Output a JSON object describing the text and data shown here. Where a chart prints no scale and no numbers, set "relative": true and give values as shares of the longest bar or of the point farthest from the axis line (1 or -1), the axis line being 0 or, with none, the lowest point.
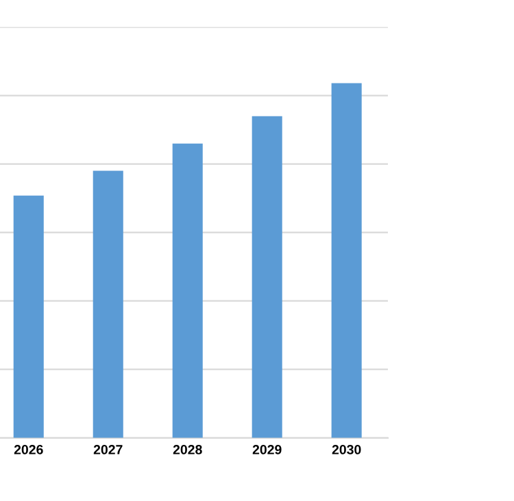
{
  "chart_data": {
    "type": "bar",
    "relative": true,
    "categories": [
      "2026",
      "2027",
      "2028",
      "2029",
      "2030"
    ],
    "values": [
      0.683,
      0.753,
      0.83,
      0.907,
      1
    ],
    "color": "#5b9bd5",
    "grid": "y"
  }
}
